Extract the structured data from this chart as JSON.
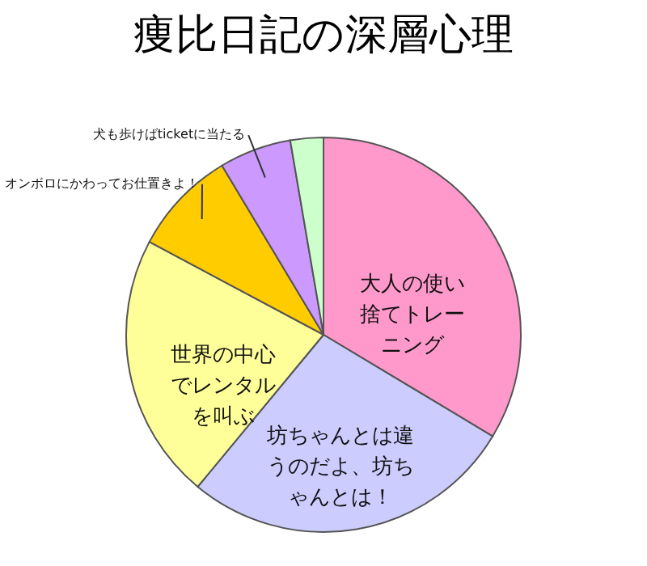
{
  "chart_data": {
    "type": "pie",
    "title": "痩比日記の深層心理",
    "categories": [
      "大人の使い捨てトレーニング",
      "坊ちゃんとは違うのだよ、坊ちゃんとは！",
      "世界の中心でレンタルを叫ぶ",
      "オンボロにかわってお仕置きよ！",
      "犬も歩けばticketに当たる",
      null
    ],
    "values": [
      33.6,
      27.4,
      21.8,
      8.6,
      5.9,
      2.7
    ],
    "colors": [
      "#ff99cc",
      "#ccccff",
      "#ffff99",
      "#ffcc00",
      "#cc99ff",
      "#ccffcc"
    ]
  }
}
